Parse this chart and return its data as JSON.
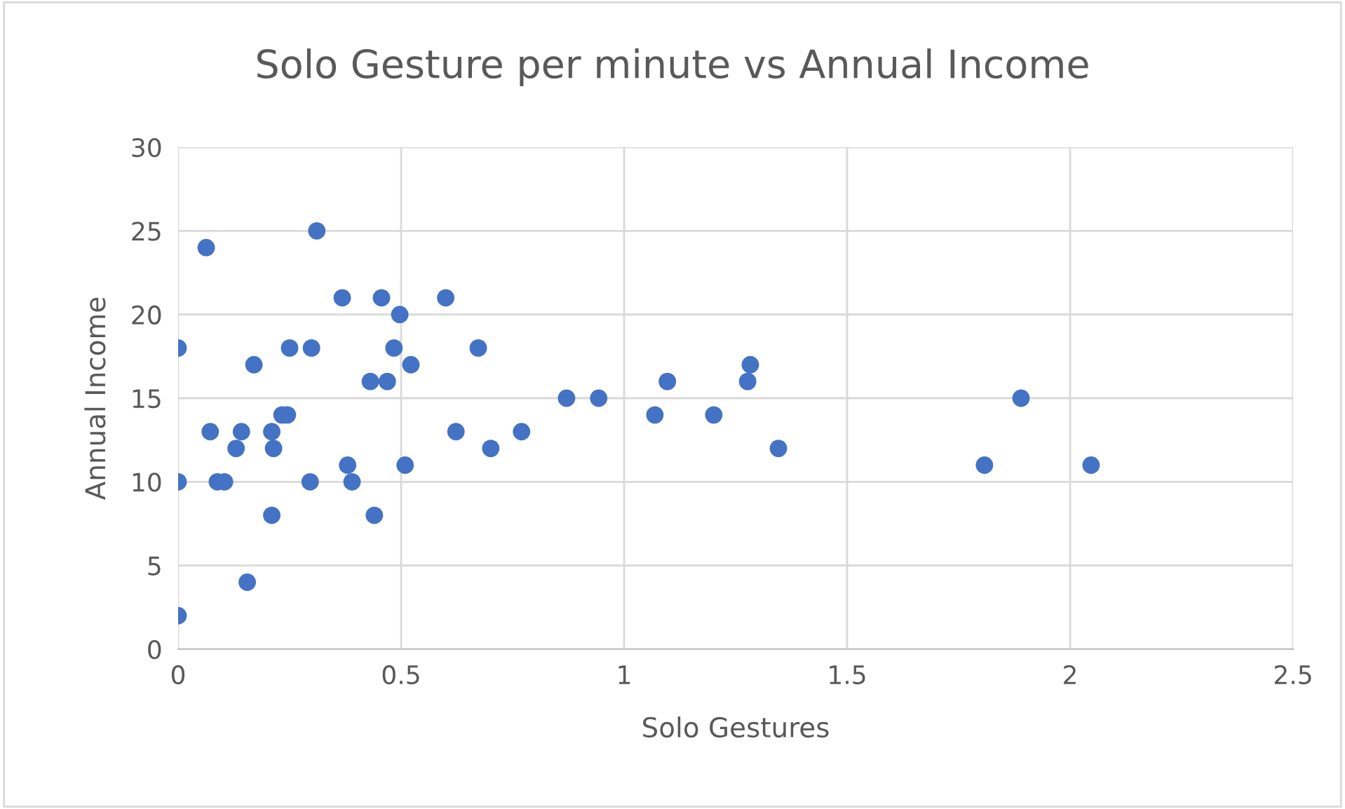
{
  "chart_data": {
    "type": "scatter",
    "title": "Solo Gesture per minute vs Annual Income",
    "xlabel": "Solo Gestures",
    "ylabel": "Annual Income",
    "xlim": [
      0,
      2.5
    ],
    "xticks": [
      0,
      0.5,
      1,
      1.5,
      2,
      2.5
    ],
    "ylim": [
      0,
      30
    ],
    "yticks": [
      0,
      5,
      10,
      15,
      20,
      25,
      30
    ],
    "grid": true,
    "marker": "circle",
    "series": [
      {
        "color": "#4472c4",
        "x": [
          0,
          0,
          0,
          0.063,
          0.072,
          0.088,
          0.104,
          0.13,
          0.142,
          0.155,
          0.17,
          0.21,
          0.21,
          0.214,
          0.233,
          0.245,
          0.25,
          0.296,
          0.299,
          0.311,
          0.368,
          0.38,
          0.39,
          0.431,
          0.44,
          0.456,
          0.469,
          0.484,
          0.497,
          0.509,
          0.522,
          0.6,
          0.623,
          0.673,
          0.701,
          0.77,
          0.871,
          0.943,
          1.069,
          1.097,
          1.201,
          1.277,
          1.283,
          1.346,
          1.808,
          1.89,
          2.047
        ],
        "values": [
          2,
          18,
          10,
          24,
          13,
          10,
          10,
          12,
          13,
          4,
          17,
          8,
          13,
          12,
          14,
          14,
          18,
          10,
          18,
          25,
          21,
          11,
          10,
          16,
          8,
          21,
          16,
          18,
          20,
          11,
          17,
          21,
          13,
          18,
          12,
          13,
          15,
          15,
          14,
          16,
          14,
          16,
          17,
          12,
          11,
          15,
          11
        ]
      }
    ]
  }
}
